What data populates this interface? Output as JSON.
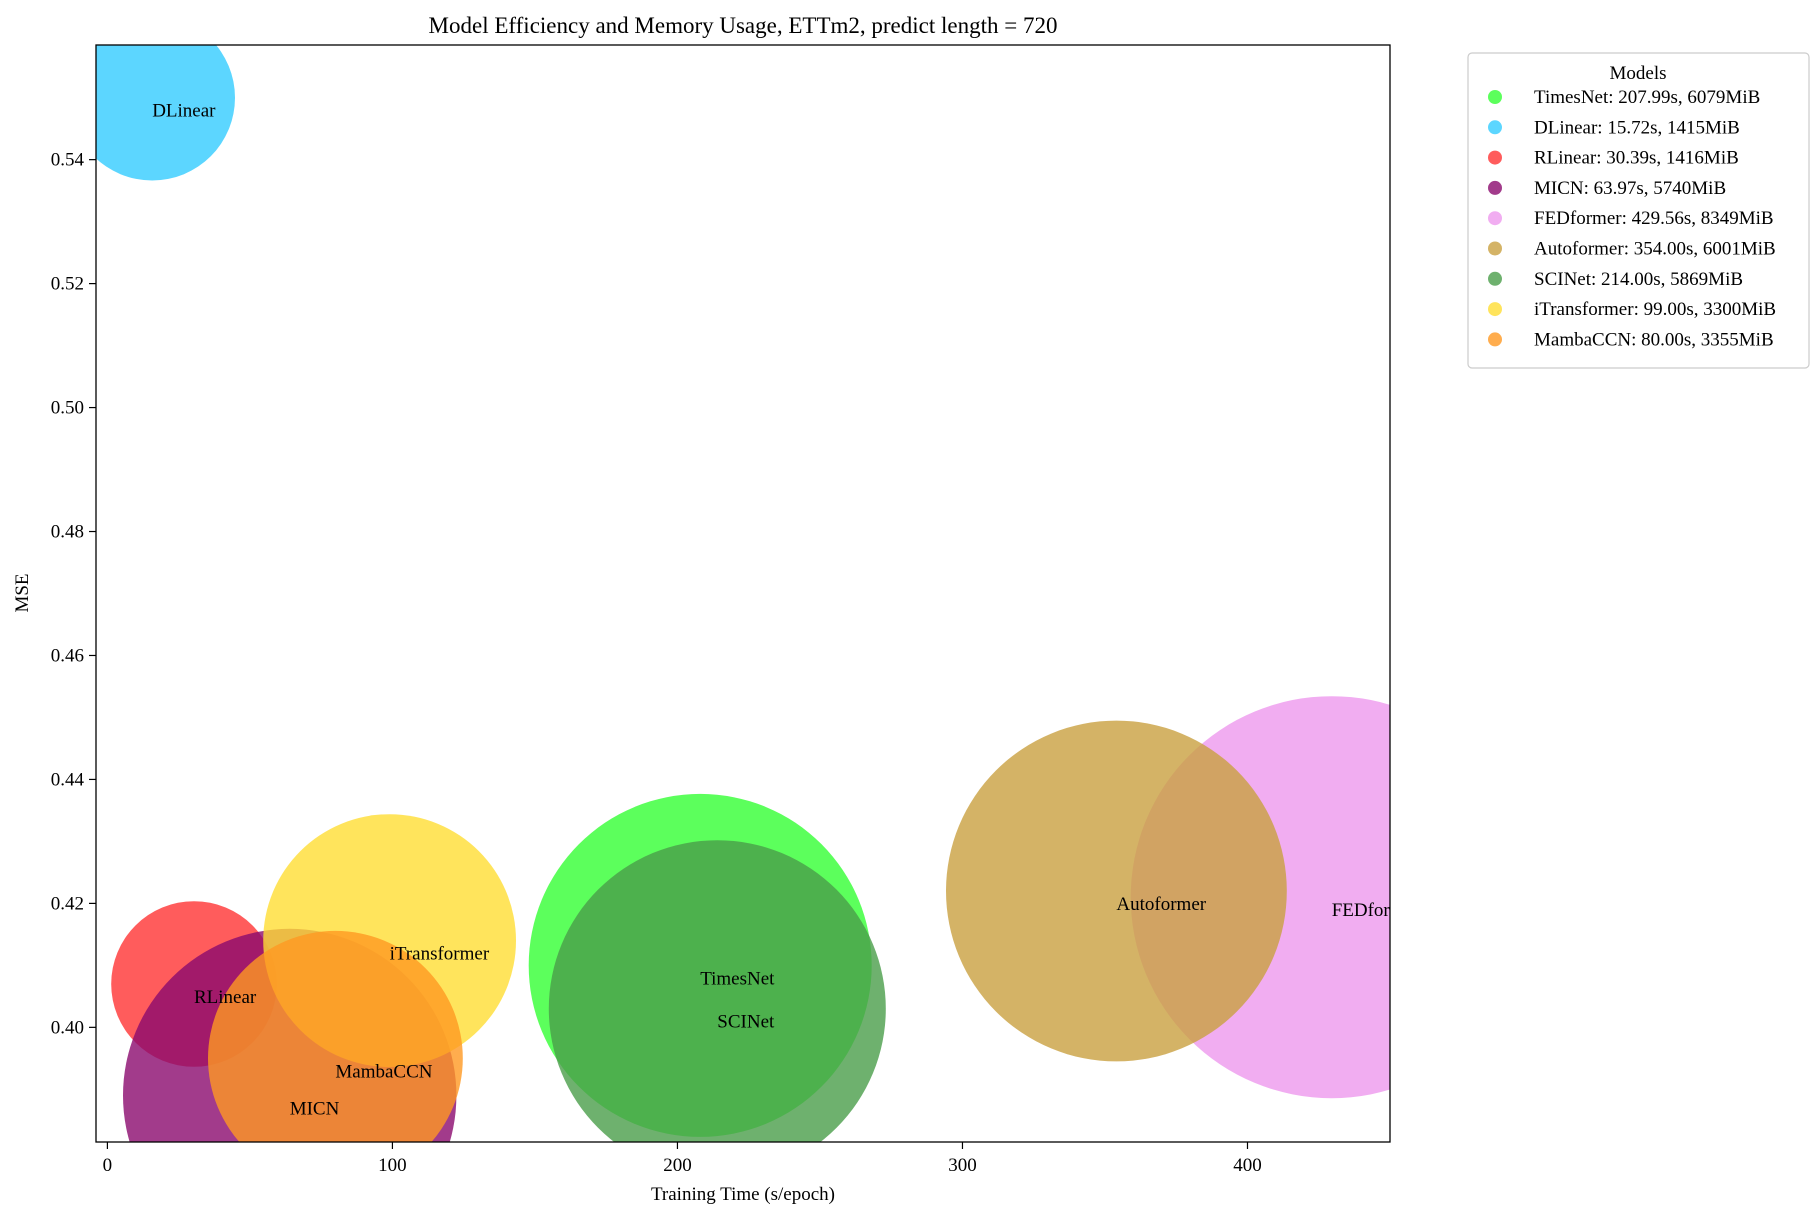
{
  "chart_data": {
    "type": "scatter",
    "title": "Model Efficiency and Memory Usage, ETTm2, predict length = 720",
    "xlabel": "Training Time (s/epoch)",
    "ylabel": "MSE",
    "xlim": [
      -4,
      450
    ],
    "ylim": [
      0.3815,
      0.5585
    ],
    "xticks": [
      0,
      100,
      200,
      300,
      400
    ],
    "yticks": [
      0.4,
      0.42,
      0.44,
      0.46,
      0.48,
      0.5,
      0.52,
      0.54
    ],
    "size_encoding": "memory (MiB)",
    "grid": false,
    "legend": {
      "title": "Models",
      "placement": "outside-top-right"
    },
    "series": [
      {
        "name": "TimesNet",
        "x": 207.99,
        "y": 0.41,
        "memory": 6079,
        "color": "#33ff33",
        "legend_label": "TimesNet: 207.99s, 6079MiB"
      },
      {
        "name": "DLinear",
        "x": 15.72,
        "y": 0.55,
        "memory": 1415,
        "color": "#33ccff",
        "legend_label": "DLinear: 15.72s, 1415MiB"
      },
      {
        "name": "RLinear",
        "x": 30.39,
        "y": 0.407,
        "memory": 1416,
        "color": "#ff3333",
        "legend_label": "RLinear: 30.39s, 1416MiB"
      },
      {
        "name": "MICN",
        "x": 63.97,
        "y": 0.389,
        "memory": 5740,
        "color": "#8b0a6e",
        "legend_label": "MICN: 63.97s, 5740MiB"
      },
      {
        "name": "FEDformer",
        "x": 429.56,
        "y": 0.421,
        "memory": 8349,
        "color": "#ee99ee",
        "legend_label": "FEDformer: 429.56s, 8349MiB"
      },
      {
        "name": "Autoformer",
        "x": 354.0,
        "y": 0.422,
        "memory": 6001,
        "color": "#c9a040",
        "legend_label": "Autoformer: 354.00s, 6001MiB"
      },
      {
        "name": "SCINet",
        "x": 214.0,
        "y": 0.403,
        "memory": 5869,
        "color": "#4a9e4a",
        "legend_label": "SCINet: 214.00s, 5869MiB"
      },
      {
        "name": "iTransformer",
        "x": 99.0,
        "y": 0.414,
        "memory": 3300,
        "color": "#ffdd33",
        "legend_label": "iTransformer: 99.00s, 3300MiB"
      },
      {
        "name": "MambaCCN",
        "x": 80.0,
        "y": 0.395,
        "memory": 3355,
        "color": "#ff9922",
        "legend_label": "MambaCCN: 80.00s, 3355MiB"
      }
    ]
  }
}
